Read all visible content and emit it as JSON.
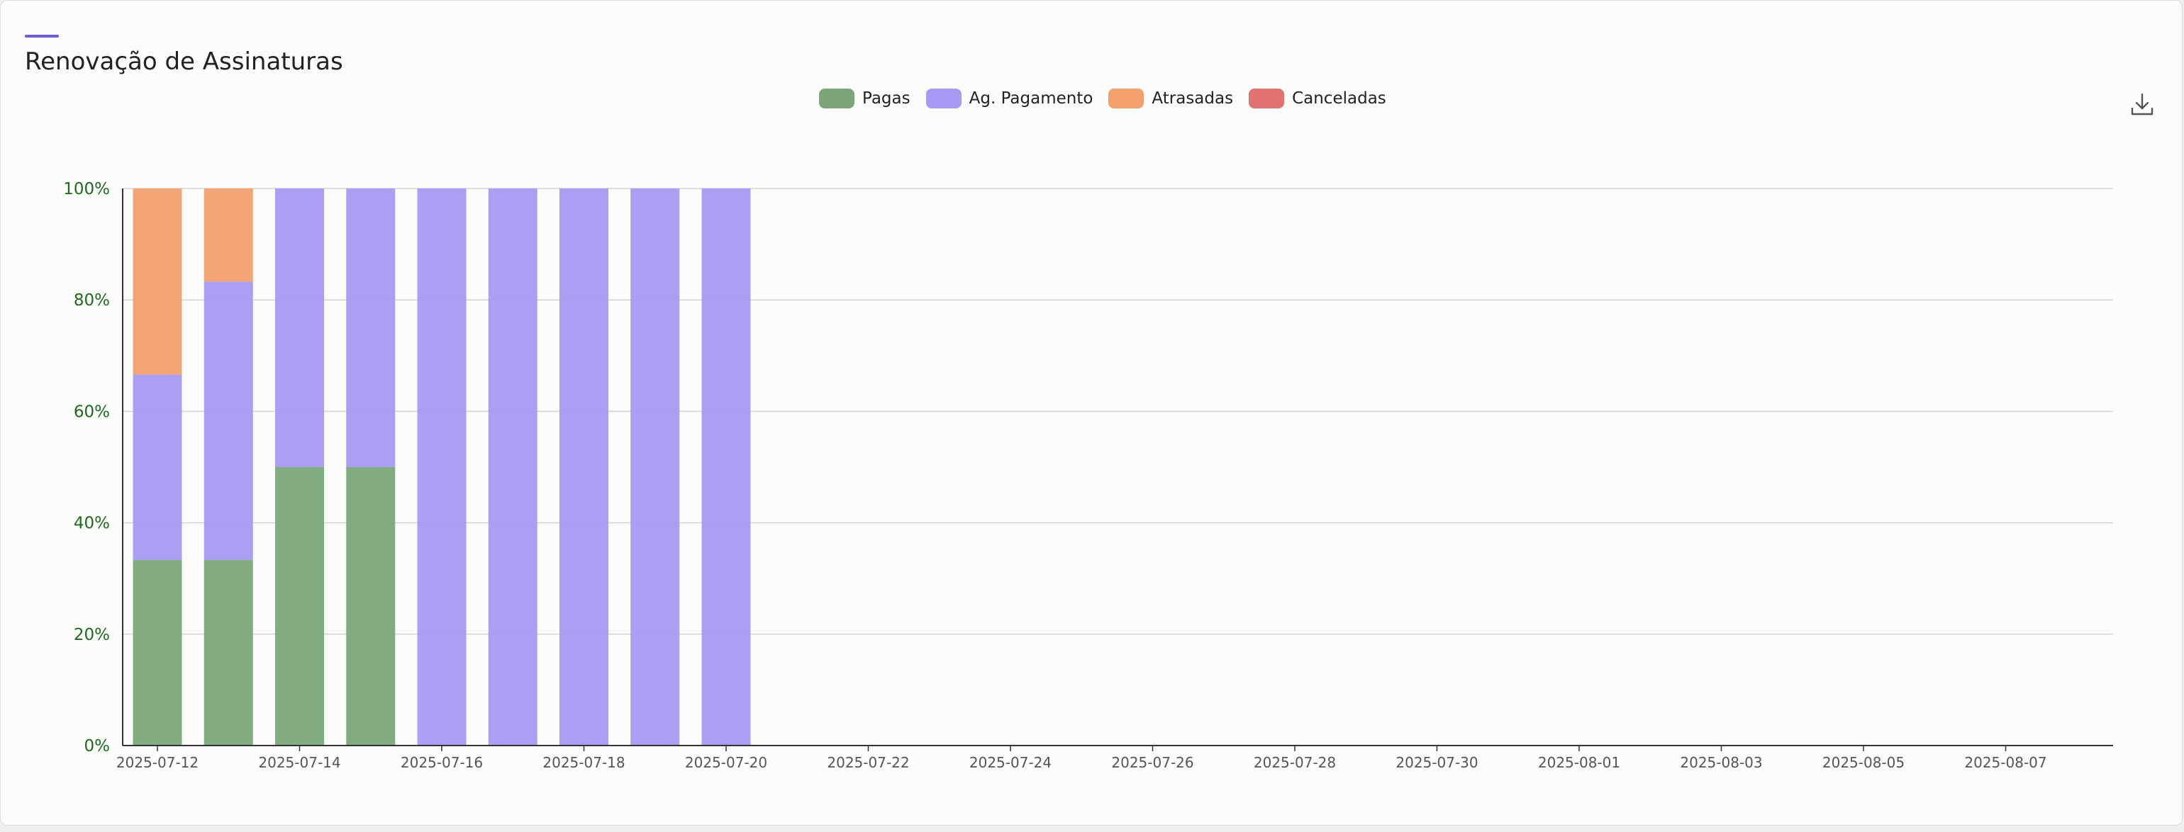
{
  "card": {
    "title": "Renovação de Assinaturas"
  },
  "icons": {
    "download": "download-icon"
  },
  "legend": [
    {
      "label": "Pagas",
      "color": "#7aa67a"
    },
    {
      "label": "Ag. Pagamento",
      "color": "#a79af2"
    },
    {
      "label": "Atrasadas",
      "color": "#f2a06e"
    },
    {
      "label": "Canceladas",
      "color": "#e07272"
    }
  ],
  "chart_data": {
    "type": "bar",
    "stacked": true,
    "x_tick_labels": [
      "2025-07-12",
      "2025-07-14",
      "2025-07-16",
      "2025-07-18",
      "2025-07-20",
      "2025-07-22",
      "2025-07-24",
      "2025-07-26",
      "2025-07-28",
      "2025-07-30",
      "2025-08-01",
      "2025-08-03",
      "2025-08-05",
      "2025-08-07"
    ],
    "categories": [
      "2025-07-12",
      "2025-07-13",
      "2025-07-14",
      "2025-07-15",
      "2025-07-16",
      "2025-07-17",
      "2025-07-18",
      "2025-07-19",
      "2025-07-20"
    ],
    "series": [
      {
        "name": "Pagas",
        "color": "#7aa67a",
        "values": [
          33.3,
          33.3,
          50,
          50,
          0,
          0,
          0,
          0,
          0
        ]
      },
      {
        "name": "Ag. Pagamento",
        "color": "#a79af2",
        "values": [
          33.3,
          50,
          50,
          50,
          100,
          100,
          100,
          100,
          100
        ]
      },
      {
        "name": "Atrasadas",
        "color": "#f2a06e",
        "values": [
          33.4,
          16.7,
          0,
          0,
          0,
          0,
          0,
          0,
          0
        ]
      },
      {
        "name": "Canceladas",
        "color": "#e07272",
        "values": [
          0,
          0,
          0,
          0,
          0,
          0,
          0,
          0,
          0
        ]
      }
    ],
    "x_range": [
      "2025-07-12",
      "2025-08-08"
    ],
    "ylim": [
      0,
      100
    ],
    "y_ticks": [
      "0%",
      "20%",
      "40%",
      "60%",
      "80%",
      "100%"
    ],
    "grid": true,
    "legend_position": "top-center"
  }
}
